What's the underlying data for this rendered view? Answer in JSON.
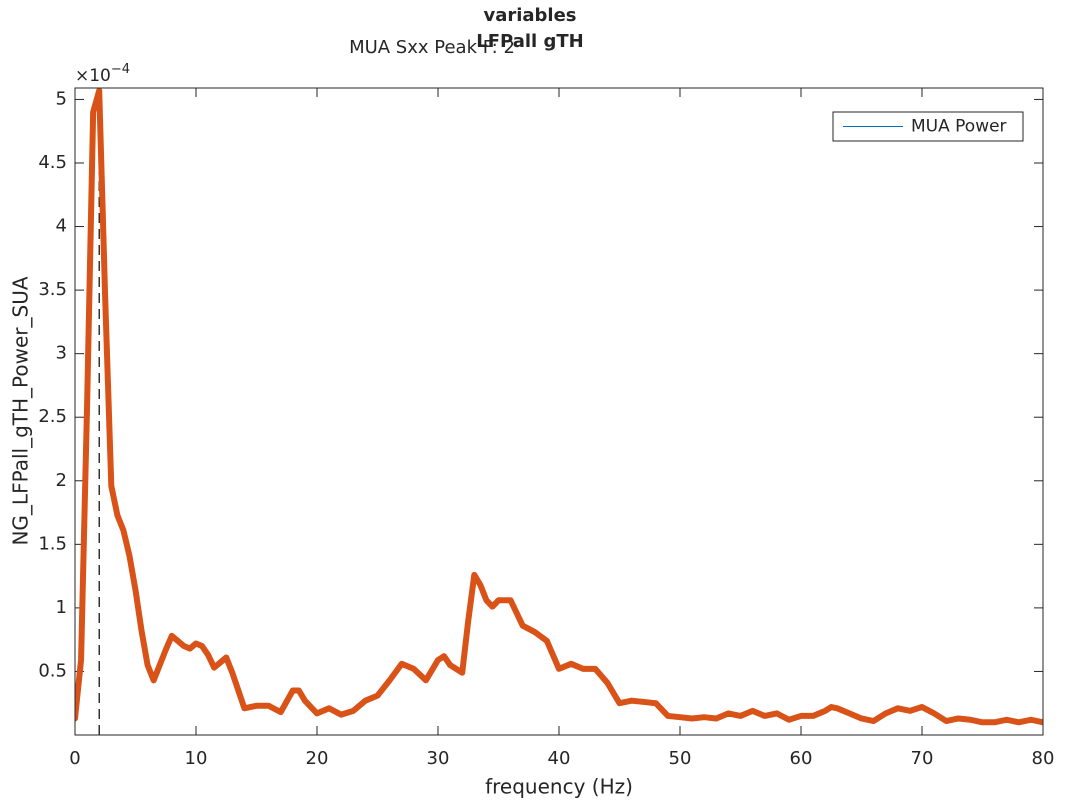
{
  "chart_data": {
    "type": "line",
    "title": [
      "variables",
      "LFPall gTH"
    ],
    "subtitle": "MUA Sxx Peak F: 2",
    "x_label": "frequency (Hz)",
    "y_label": "NG_LFPall_gTH_Power_SUA",
    "y_multiplier": {
      "base": "×10",
      "exponent": "−4"
    },
    "x": [
      0,
      0.5,
      1,
      1.5,
      2,
      2.5,
      3,
      3.5,
      4,
      4.5,
      5,
      5.5,
      6,
      6.5,
      7,
      7.5,
      8,
      8.5,
      9,
      9.5,
      10,
      10.5,
      11,
      11.5,
      12,
      12.5,
      13,
      13.5,
      14,
      15,
      16,
      17,
      18,
      18.5,
      19,
      20,
      21,
      22,
      23,
      24,
      25,
      26,
      27,
      28,
      29,
      30,
      30.5,
      31,
      32,
      32.5,
      33,
      33.5,
      34,
      34.5,
      35,
      36,
      37,
      38,
      39,
      40,
      41,
      42,
      43,
      44,
      45,
      46,
      47,
      48,
      49,
      50,
      51,
      52,
      53,
      54,
      55,
      56,
      57,
      58,
      59,
      60,
      61,
      62,
      62.5,
      63,
      64,
      65,
      66,
      67,
      68,
      69,
      70,
      71,
      72,
      73,
      74,
      75,
      76,
      77,
      78,
      79,
      80
    ],
    "series": [
      {
        "color": "#d95319",
        "values": [
          0.13,
          0.59,
          2.6,
          4.9,
          5.07,
          3.42,
          1.96,
          1.73,
          1.61,
          1.41,
          1.14,
          0.82,
          0.55,
          0.43,
          0.55,
          0.67,
          0.78,
          0.74,
          0.7,
          0.68,
          0.72,
          0.7,
          0.63,
          0.53,
          0.57,
          0.61,
          0.49,
          0.35,
          0.21,
          0.23,
          0.23,
          0.18,
          0.35,
          0.35,
          0.27,
          0.17,
          0.21,
          0.16,
          0.19,
          0.27,
          0.31,
          0.43,
          0.56,
          0.52,
          0.43,
          0.59,
          0.62,
          0.55,
          0.49,
          0.9,
          1.26,
          1.18,
          1.06,
          1.01,
          1.06,
          1.06,
          0.86,
          0.81,
          0.74,
          0.52,
          0.56,
          0.52,
          0.52,
          0.41,
          0.25,
          0.27,
          0.26,
          0.25,
          0.15,
          0.14,
          0.13,
          0.14,
          0.13,
          0.17,
          0.15,
          0.19,
          0.15,
          0.17,
          0.12,
          0.15,
          0.15,
          0.19,
          0.22,
          0.21,
          0.17,
          0.13,
          0.11,
          0.17,
          0.21,
          0.19,
          0.22,
          0.17,
          0.11,
          0.13,
          0.12,
          0.1,
          0.1,
          0.12,
          0.1,
          0.12,
          0.1
        ]
      }
    ],
    "vline": {
      "x": 2,
      "y": [
        0,
        4.9
      ]
    },
    "legend": {
      "location": "northeast",
      "entries": [
        {
          "label": "MUA Power",
          "color": "#0072bd"
        }
      ]
    },
    "xlim": [
      0,
      80
    ],
    "xticks": [
      0,
      10,
      20,
      30,
      40,
      50,
      60,
      70,
      80
    ],
    "ylim": [
      0,
      5.09
    ],
    "yticks": [
      0.5,
      1,
      1.5,
      2,
      2.5,
      3,
      3.5,
      4,
      4.5,
      5
    ],
    "grid": false
  }
}
